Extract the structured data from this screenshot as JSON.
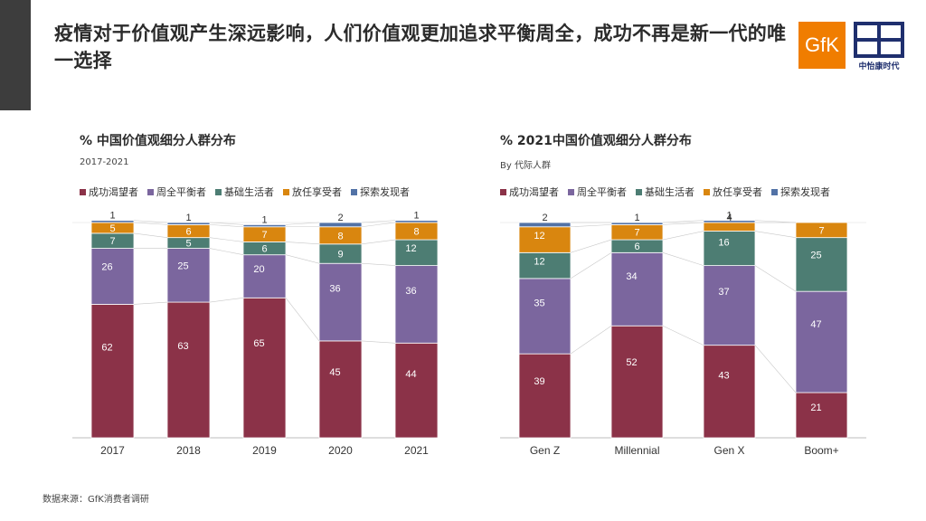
{
  "title": "疫情对于价值观产生深远影响，人们价值观更加追求平衡周全，成功不再是新一代的唯一选择",
  "logos": {
    "gfk": "GfK",
    "cmm_text": "中怡康时代"
  },
  "source": "数据来源：GfK消费者调研",
  "colors": {
    "成功渴望者": "#8b3248",
    "周全平衡者": "#7b669e",
    "基础生活者": "#4d7d73",
    "放任享受者": "#d9860f",
    "探索发现者": "#5272a6"
  },
  "chart_data": [
    {
      "type": "bar",
      "stacked": true,
      "title": "% 中国价值观细分人群分布",
      "subtitle": "2017-2021",
      "categories": [
        "2017",
        "2018",
        "2019",
        "2020",
        "2021"
      ],
      "series": [
        {
          "name": "成功渴望者",
          "values": [
            62,
            63,
            65,
            45,
            44
          ]
        },
        {
          "name": "周全平衡者",
          "values": [
            26,
            25,
            20,
            36,
            36
          ]
        },
        {
          "name": "基础生活者",
          "values": [
            7,
            5,
            6,
            9,
            12
          ]
        },
        {
          "name": "放任享受者",
          "values": [
            5,
            6,
            7,
            8,
            8
          ]
        },
        {
          "name": "探索发现者",
          "values": [
            1,
            1,
            1,
            2,
            1
          ]
        }
      ],
      "ylim": [
        0,
        100
      ]
    },
    {
      "type": "bar",
      "stacked": true,
      "title": "% 2021中国价值观细分人群分布",
      "subtitle": "By 代际人群",
      "categories": [
        "Gen Z",
        "Millennial",
        "Gen X",
        "Boom+"
      ],
      "series": [
        {
          "name": "成功渴望者",
          "values": [
            39,
            52,
            43,
            21
          ]
        },
        {
          "name": "周全平衡者",
          "values": [
            35,
            34,
            37,
            47
          ]
        },
        {
          "name": "基础生活者",
          "values": [
            12,
            6,
            16,
            25
          ]
        },
        {
          "name": "放任享受者",
          "values": [
            12,
            7,
            4,
            7
          ]
        },
        {
          "name": "探索发现者",
          "values": [
            2,
            1,
            1,
            0
          ]
        }
      ],
      "ylim": [
        0,
        100
      ]
    }
  ]
}
